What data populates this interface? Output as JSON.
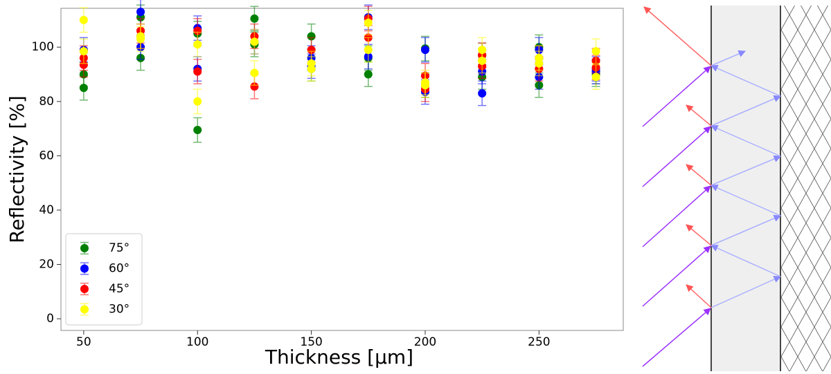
{
  "chart_data": {
    "type": "scatter",
    "x_label": "Thickness [µm]",
    "y_label": "Reflectivity [%]",
    "xlim": [
      40,
      287
    ],
    "ylim": [
      -4.3,
      114.3
    ],
    "xticks": [
      50,
      100,
      150,
      200,
      250
    ],
    "yticks": [
      0,
      20,
      40,
      60,
      80,
      100
    ],
    "legend": "lower left",
    "series": [
      {
        "name": "75°",
        "color": "#008000",
        "error": 4.5,
        "x": [
          50,
          50,
          75,
          75,
          100,
          100,
          125,
          125,
          150,
          150,
          175,
          175,
          200,
          200,
          225,
          225,
          250,
          250,
          275,
          275
        ],
        "values": [
          85,
          90,
          111,
          96,
          105,
          69.5,
          110.5,
          101,
          104,
          92,
          90,
          96,
          99.5,
          86,
          89,
          97,
          100,
          86,
          90,
          91
        ]
      },
      {
        "name": "60°",
        "color": "#0000ff",
        "error": 4.5,
        "x": [
          50,
          75,
          75,
          100,
          100,
          125,
          150,
          150,
          175,
          175,
          200,
          200,
          225,
          225,
          250,
          250,
          275,
          275
        ],
        "values": [
          99,
          113,
          100,
          107,
          92,
          102,
          96,
          93,
          111,
          96.5,
          99,
          83.5,
          91,
          83,
          99,
          89,
          91,
          92
        ]
      },
      {
        "name": "45°",
        "color": "#ff0000",
        "error": 4.5,
        "x": [
          50,
          50,
          75,
          75,
          100,
          100,
          125,
          125,
          150,
          175,
          175,
          200,
          200,
          225,
          225,
          250,
          250,
          275,
          275
        ],
        "values": [
          96,
          93.5,
          106,
          104,
          106,
          91,
          104,
          85.5,
          99,
          110.5,
          103.5,
          89.5,
          84.5,
          97,
          93,
          92,
          96,
          95,
          92.5
        ]
      },
      {
        "name": "30°",
        "color": "#ffff00",
        "error": 4.5,
        "x": [
          50,
          50,
          75,
          75,
          100,
          100,
          125,
          125,
          150,
          150,
          175,
          175,
          200,
          200,
          225,
          225,
          250,
          250,
          275,
          275
        ],
        "values": [
          110,
          98.5,
          104,
          103,
          101,
          80,
          102,
          90.5,
          94,
          92,
          109,
          99,
          86,
          87,
          99,
          95,
          96,
          94,
          98.5,
          89
        ]
      }
    ]
  }
}
